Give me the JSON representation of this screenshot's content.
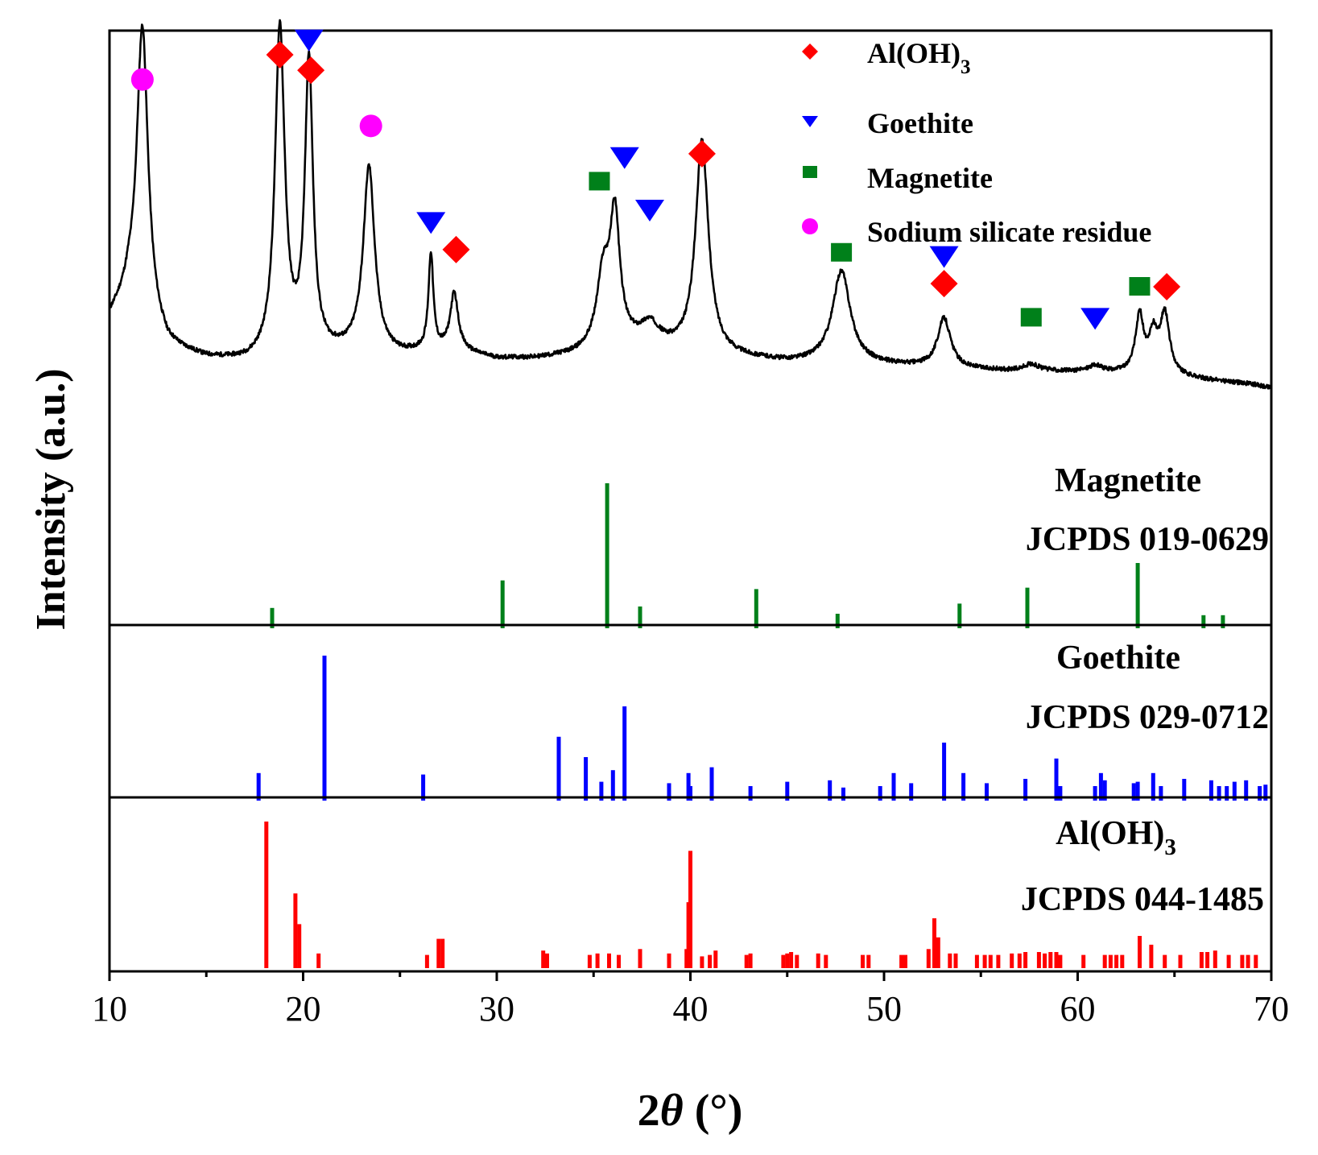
{
  "chart_data": {
    "type": "line",
    "title": "",
    "xlabel_prefix": "2",
    "xlabel_symbol": "θ",
    "xlabel_unit": " (°)",
    "ylabel": "Intensity (a.u.)",
    "xlim": [
      10,
      70
    ],
    "xticks": [
      10,
      20,
      30,
      40,
      50,
      60,
      70
    ],
    "xtick_labels": [
      "10",
      "20",
      "30",
      "40",
      "50",
      "60",
      "70"
    ],
    "colors": {
      "pattern": "#000000",
      "aloh3": "#ff0000",
      "goethite": "#0000ff",
      "magnetite": "#00801a",
      "sodium_silicate": "#ff00ff"
    },
    "legend": {
      "position": "top-right",
      "entries": [
        {
          "key": "aloh3",
          "label": "Al(OH)",
          "sub": "3",
          "marker": "diamond"
        },
        {
          "key": "goethite",
          "label": "Goethite",
          "marker": "triangle-down"
        },
        {
          "key": "magnetite",
          "label": "Magnetite",
          "marker": "square"
        },
        {
          "key": "sodium_silicate",
          "label": "Sodium silicate residue",
          "marker": "circle"
        }
      ]
    },
    "measured_pattern": {
      "name": "Sample",
      "baseline": [
        [
          10,
          0.22
        ],
        [
          11,
          0.28
        ],
        [
          13,
          0.14
        ],
        [
          15,
          0.11
        ],
        [
          17,
          0.1
        ],
        [
          19,
          0.11
        ],
        [
          21,
          0.12
        ],
        [
          23,
          0.13
        ],
        [
          25,
          0.12
        ],
        [
          26.5,
          0.13
        ],
        [
          28,
          0.13
        ],
        [
          30,
          0.11
        ],
        [
          32,
          0.11
        ],
        [
          34,
          0.12
        ],
        [
          35,
          0.13
        ],
        [
          36.5,
          0.15
        ],
        [
          38,
          0.14
        ],
        [
          39.5,
          0.13
        ],
        [
          41,
          0.12
        ],
        [
          43,
          0.11
        ],
        [
          45,
          0.1
        ],
        [
          47,
          0.1
        ],
        [
          49,
          0.095
        ],
        [
          51,
          0.09
        ],
        [
          53,
          0.085
        ],
        [
          55,
          0.08
        ],
        [
          57,
          0.075
        ],
        [
          59,
          0.075
        ],
        [
          61,
          0.07
        ],
        [
          63,
          0.07
        ],
        [
          65,
          0.06
        ],
        [
          67,
          0.05
        ],
        [
          69,
          0.04
        ],
        [
          70,
          0.03
        ]
      ],
      "peaks": [
        {
          "x": 11.7,
          "height": 0.82,
          "width": 0.35
        },
        {
          "x": 18.8,
          "height": 0.93,
          "width": 0.3
        },
        {
          "x": 20.3,
          "height": 0.82,
          "width": 0.25
        },
        {
          "x": 23.4,
          "height": 0.52,
          "width": 0.35
        },
        {
          "x": 26.6,
          "height": 0.27,
          "width": 0.15
        },
        {
          "x": 27.8,
          "height": 0.16,
          "width": 0.25
        },
        {
          "x": 35.5,
          "height": 0.2,
          "width": 0.4
        },
        {
          "x": 36.1,
          "height": 0.35,
          "width": 0.3
        },
        {
          "x": 37.9,
          "height": 0.06,
          "width": 0.6
        },
        {
          "x": 40.6,
          "height": 0.6,
          "width": 0.4
        },
        {
          "x": 47.8,
          "height": 0.26,
          "width": 0.55
        },
        {
          "x": 53.1,
          "height": 0.14,
          "width": 0.4
        },
        {
          "x": 57.6,
          "height": 0.02,
          "width": 0.5
        },
        {
          "x": 60.9,
          "height": 0.02,
          "width": 0.5
        },
        {
          "x": 63.2,
          "height": 0.16,
          "width": 0.25
        },
        {
          "x": 63.9,
          "height": 0.1,
          "width": 0.25
        },
        {
          "x": 64.5,
          "height": 0.17,
          "width": 0.3
        }
      ]
    },
    "phase_markers": [
      {
        "x": 11.7,
        "phase": "sodium_silicate",
        "level": 0.92
      },
      {
        "x": 18.8,
        "phase": "aloh3",
        "level": 1.0
      },
      {
        "x": 20.3,
        "phase": "goethite",
        "level": 1.05
      },
      {
        "x": 20.4,
        "phase": "aloh3",
        "level": 0.95
      },
      {
        "x": 23.5,
        "phase": "sodium_silicate",
        "level": 0.77
      },
      {
        "x": 26.6,
        "phase": "goethite",
        "level": 0.46
      },
      {
        "x": 27.9,
        "phase": "aloh3",
        "level": 0.37
      },
      {
        "x": 35.3,
        "phase": "magnetite",
        "level": 0.59
      },
      {
        "x": 36.6,
        "phase": "goethite",
        "level": 0.67
      },
      {
        "x": 37.9,
        "phase": "goethite",
        "level": 0.5
      },
      {
        "x": 40.6,
        "phase": "aloh3",
        "level": 0.68
      },
      {
        "x": 47.8,
        "phase": "magnetite",
        "level": 0.36
      },
      {
        "x": 53.1,
        "phase": "goethite",
        "level": 0.35
      },
      {
        "x": 53.1,
        "phase": "aloh3",
        "level": 0.26
      },
      {
        "x": 57.6,
        "phase": "magnetite",
        "level": 0.15
      },
      {
        "x": 60.9,
        "phase": "goethite",
        "level": 0.15
      },
      {
        "x": 63.2,
        "phase": "magnetite",
        "level": 0.25
      },
      {
        "x": 64.6,
        "phase": "aloh3",
        "level": 0.25
      }
    ],
    "reference_patterns": [
      {
        "phase": "magnetite",
        "name": "Magnetite",
        "card": "JCPDS 019-0629",
        "peaks": [
          [
            18.4,
            0.14
          ],
          [
            30.3,
            0.33
          ],
          [
            35.7,
            1.0
          ],
          [
            37.4,
            0.15
          ],
          [
            43.4,
            0.27
          ],
          [
            47.6,
            0.1
          ],
          [
            53.9,
            0.17
          ],
          [
            57.4,
            0.28
          ],
          [
            63.1,
            0.45
          ],
          [
            66.5,
            0.09
          ],
          [
            67.5,
            0.09
          ]
        ]
      },
      {
        "phase": "goethite",
        "name": "Goethite",
        "card": "JCPDS 029-0712",
        "peaks": [
          [
            17.7,
            0.19
          ],
          [
            21.1,
            1.0
          ],
          [
            26.2,
            0.18
          ],
          [
            33.2,
            0.44
          ],
          [
            34.6,
            0.3
          ],
          [
            35.4,
            0.13
          ],
          [
            36.0,
            0.21
          ],
          [
            36.6,
            0.65
          ],
          [
            38.9,
            0.12
          ],
          [
            39.9,
            0.19
          ],
          [
            40.0,
            0.1
          ],
          [
            41.1,
            0.23
          ],
          [
            43.1,
            0.1
          ],
          [
            45.0,
            0.13
          ],
          [
            47.2,
            0.14
          ],
          [
            47.9,
            0.09
          ],
          [
            49.8,
            0.1
          ],
          [
            50.5,
            0.19
          ],
          [
            51.4,
            0.12
          ],
          [
            53.1,
            0.4
          ],
          [
            54.1,
            0.19
          ],
          [
            55.3,
            0.12
          ],
          [
            57.3,
            0.15
          ],
          [
            58.9,
            0.29
          ],
          [
            59.1,
            0.1
          ],
          [
            60.9,
            0.1
          ],
          [
            61.2,
            0.19
          ],
          [
            61.4,
            0.14
          ],
          [
            62.9,
            0.12
          ],
          [
            63.1,
            0.13
          ],
          [
            63.9,
            0.19
          ],
          [
            64.3,
            0.1
          ],
          [
            65.5,
            0.15
          ],
          [
            66.9,
            0.14
          ],
          [
            67.3,
            0.1
          ],
          [
            67.7,
            0.1
          ],
          [
            68.1,
            0.13
          ],
          [
            68.7,
            0.14
          ],
          [
            69.4,
            0.1
          ],
          [
            69.7,
            0.11
          ]
        ]
      },
      {
        "phase": "aloh3",
        "name": "Al(OH)",
        "name_sub": "3",
        "card": "JCPDS 044-1485",
        "peaks": [
          [
            18.1,
            1.0
          ],
          [
            19.6,
            0.51
          ],
          [
            19.8,
            0.3
          ],
          [
            20.8,
            0.1
          ],
          [
            26.4,
            0.09
          ],
          [
            27.0,
            0.2
          ],
          [
            27.2,
            0.2
          ],
          [
            32.4,
            0.12
          ],
          [
            32.6,
            0.1
          ],
          [
            34.8,
            0.09
          ],
          [
            35.2,
            0.1
          ],
          [
            35.8,
            0.1
          ],
          [
            36.3,
            0.09
          ],
          [
            37.4,
            0.13
          ],
          [
            38.9,
            0.1
          ],
          [
            39.8,
            0.13
          ],
          [
            39.9,
            0.45
          ],
          [
            40.0,
            0.8
          ],
          [
            40.6,
            0.08
          ],
          [
            41.0,
            0.09
          ],
          [
            41.3,
            0.12
          ],
          [
            42.9,
            0.09
          ],
          [
            43.1,
            0.1
          ],
          [
            44.8,
            0.09
          ],
          [
            45.0,
            0.1
          ],
          [
            45.2,
            0.11
          ],
          [
            45.5,
            0.09
          ],
          [
            46.6,
            0.1
          ],
          [
            47.0,
            0.09
          ],
          [
            48.9,
            0.09
          ],
          [
            49.2,
            0.09
          ],
          [
            50.9,
            0.09
          ],
          [
            51.1,
            0.09
          ],
          [
            52.3,
            0.13
          ],
          [
            52.6,
            0.34
          ],
          [
            52.8,
            0.21
          ],
          [
            53.4,
            0.1
          ],
          [
            53.7,
            0.1
          ],
          [
            54.8,
            0.09
          ],
          [
            55.2,
            0.09
          ],
          [
            55.5,
            0.09
          ],
          [
            55.9,
            0.09
          ],
          [
            56.6,
            0.1
          ],
          [
            57.0,
            0.1
          ],
          [
            57.3,
            0.11
          ],
          [
            58.0,
            0.11
          ],
          [
            58.3,
            0.1
          ],
          [
            58.6,
            0.11
          ],
          [
            58.9,
            0.11
          ],
          [
            59.1,
            0.09
          ],
          [
            60.3,
            0.09
          ],
          [
            61.4,
            0.09
          ],
          [
            61.7,
            0.09
          ],
          [
            62.0,
            0.09
          ],
          [
            62.3,
            0.09
          ],
          [
            63.2,
            0.22
          ],
          [
            63.8,
            0.16
          ],
          [
            64.5,
            0.09
          ],
          [
            65.3,
            0.09
          ],
          [
            66.4,
            0.11
          ],
          [
            66.7,
            0.11
          ],
          [
            67.1,
            0.12
          ],
          [
            67.8,
            0.09
          ],
          [
            68.5,
            0.09
          ],
          [
            68.8,
            0.09
          ],
          [
            69.2,
            0.09
          ]
        ]
      }
    ]
  }
}
